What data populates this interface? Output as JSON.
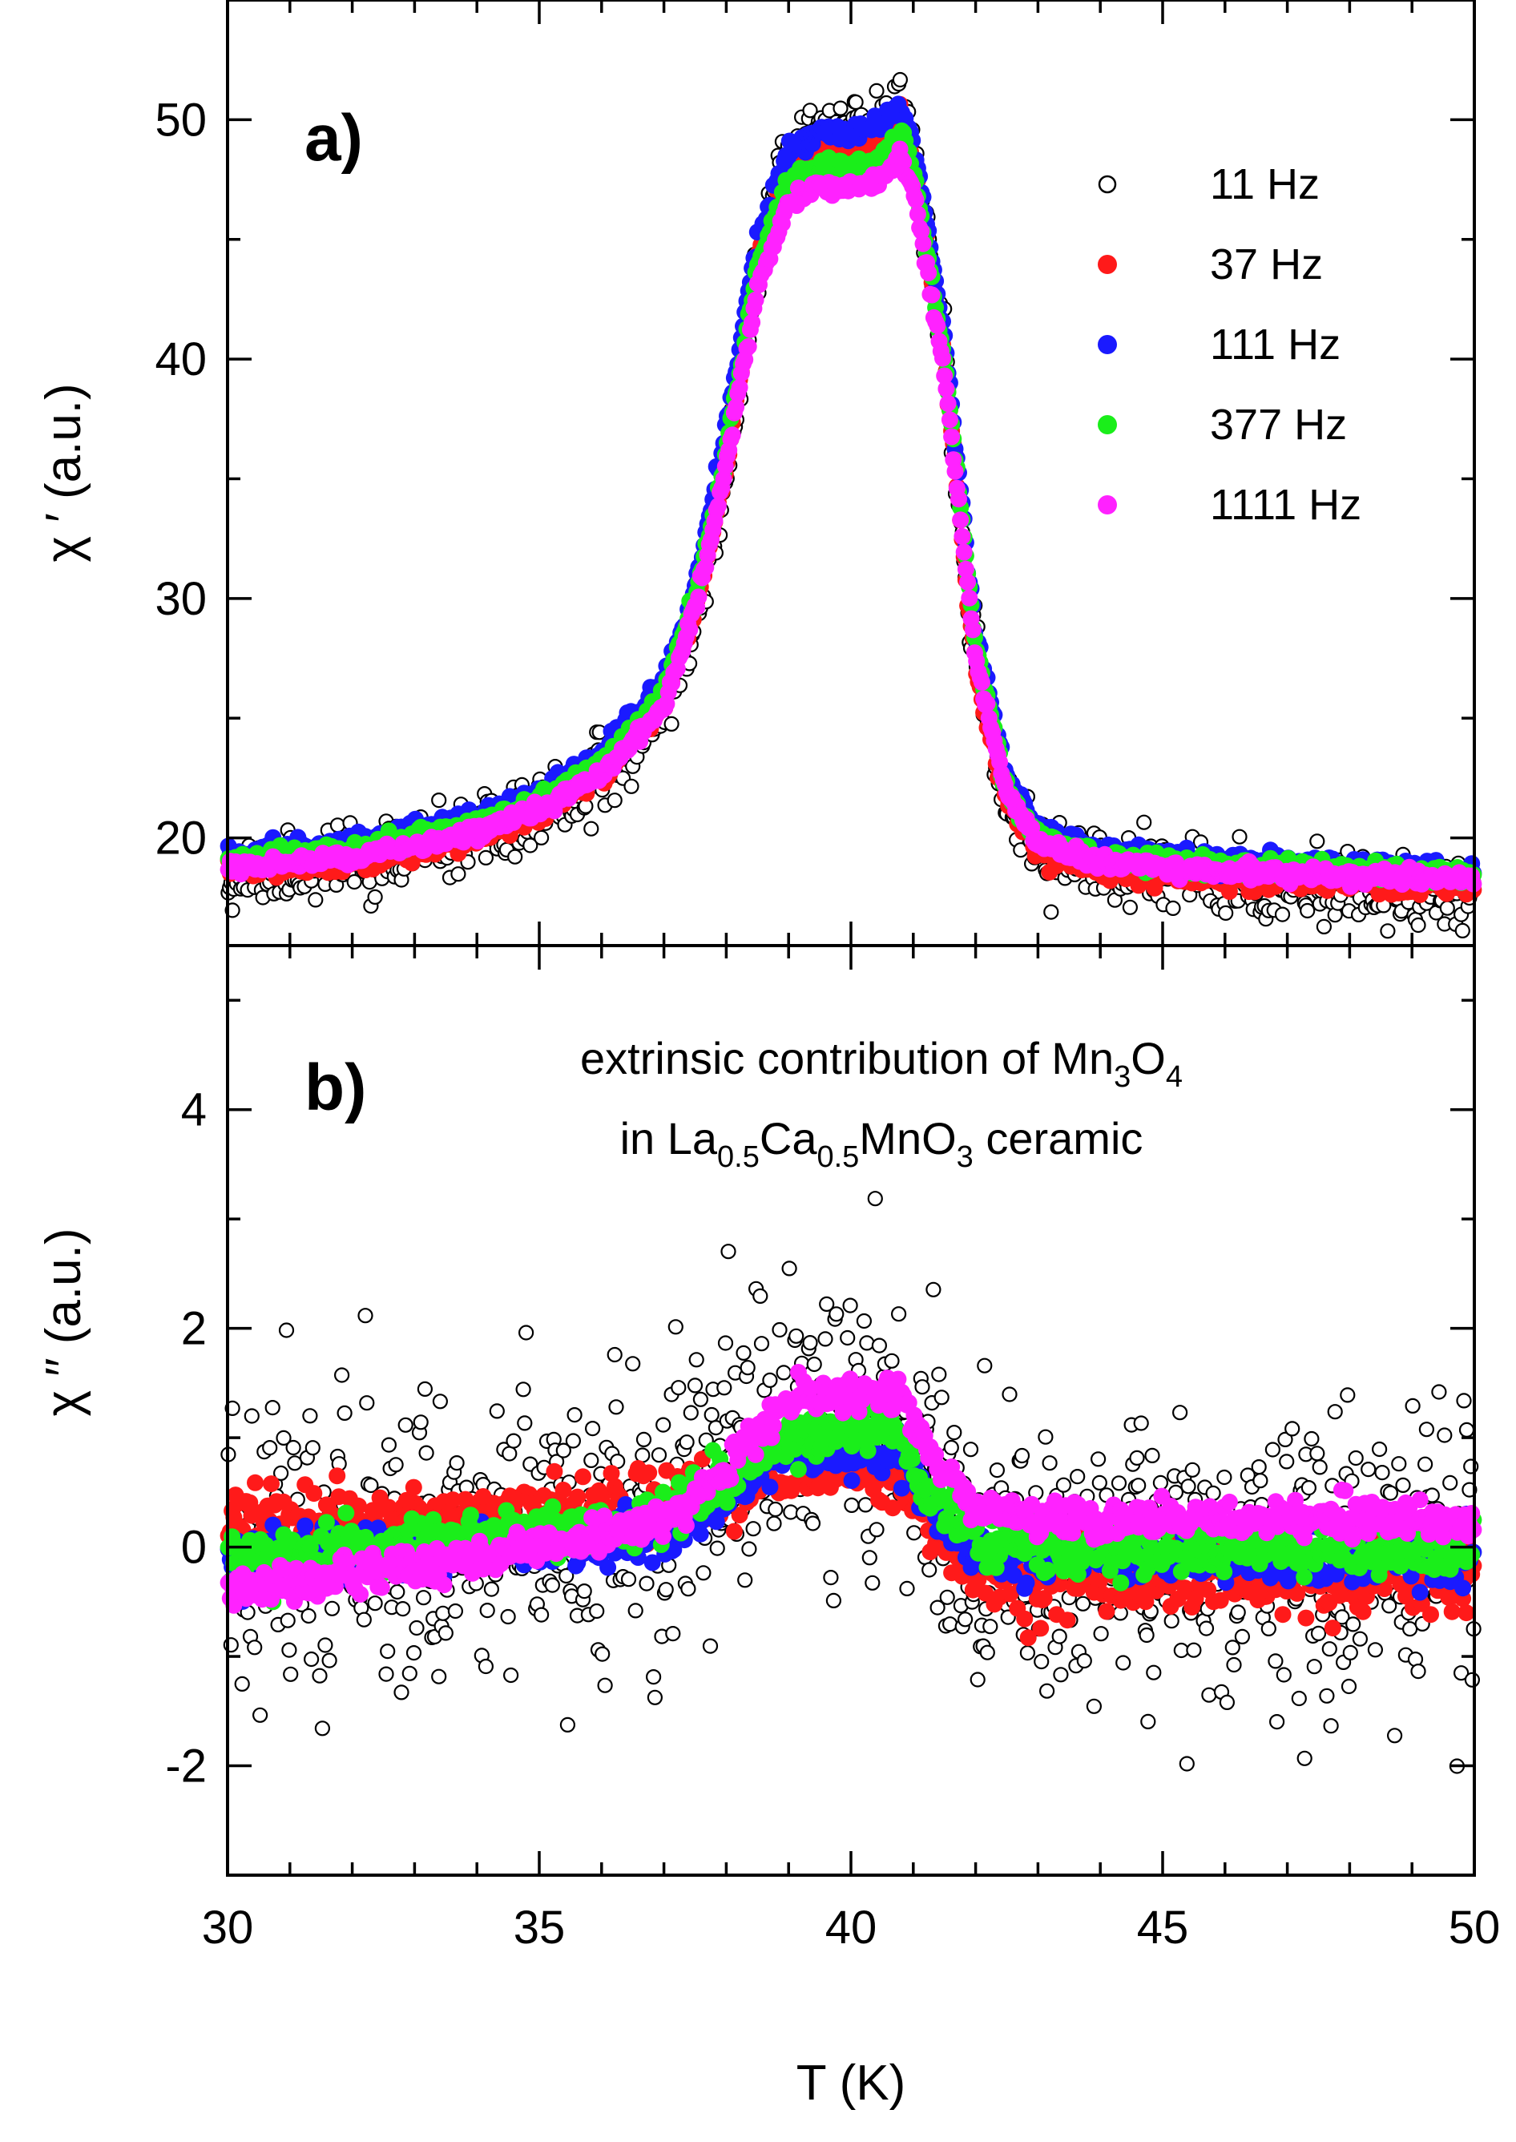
{
  "chart_data": [
    {
      "type": "scatter",
      "panel": "a)",
      "ylabel": "χ ′ (a.u.)",
      "xlim": [
        30,
        50
      ],
      "ylim": [
        15.5,
        55
      ],
      "yticks": [
        20,
        30,
        40,
        50
      ],
      "series": [
        {
          "name": "11 Hz",
          "color": "#ffffff",
          "stroke": "#000000",
          "style": "open",
          "noise": 0.7,
          "x": [
            30,
            32,
            34,
            35,
            36,
            37,
            37.5,
            38,
            38.5,
            39,
            39.5,
            40,
            40.5,
            40.8,
            41,
            41.5,
            42,
            42.5,
            43,
            44,
            46,
            48,
            50
          ],
          "y": [
            18.5,
            19.0,
            20.0,
            21.0,
            22.5,
            25.5,
            29,
            35,
            44,
            48.5,
            49.5,
            49.5,
            50,
            51,
            49,
            40,
            27,
            21.5,
            19.5,
            18.7,
            18.3,
            18.0,
            17.8
          ]
        },
        {
          "name": "37 Hz",
          "color": "#ff1a1a",
          "style": "filled",
          "noise": 0.25,
          "x": [
            30,
            32,
            34,
            35,
            36,
            37,
            37.5,
            38,
            38.5,
            39,
            39.5,
            40,
            40.5,
            40.8,
            41,
            41.5,
            42,
            42.5,
            43,
            44,
            46,
            48,
            50
          ],
          "y": [
            18.7,
            19.0,
            20.0,
            21.0,
            22.7,
            25.8,
            29.5,
            35.5,
            44,
            48,
            48.8,
            48.8,
            49.2,
            50.2,
            48.5,
            40,
            27,
            21.5,
            19.5,
            18.7,
            18.4,
            18.2,
            18.0
          ]
        },
        {
          "name": "111 Hz",
          "color": "#1a1aff",
          "style": "filled",
          "noise": 0.2,
          "x": [
            30,
            32,
            34,
            35,
            36,
            37,
            37.5,
            38,
            38.5,
            39,
            39.5,
            40,
            40.5,
            40.8,
            41,
            41.5,
            42,
            42.5,
            43,
            44,
            46,
            48,
            50
          ],
          "y": [
            19.2,
            19.8,
            20.8,
            21.8,
            23.5,
            26.5,
            30.5,
            37,
            45,
            48.8,
            49.5,
            49.5,
            49.8,
            50.5,
            49,
            41,
            28.5,
            22.5,
            20.3,
            19.5,
            19.0,
            18.8,
            18.6
          ]
        },
        {
          "name": "377 Hz",
          "color": "#1aee1a",
          "style": "filled",
          "noise": 0.2,
          "x": [
            30,
            32,
            34,
            35,
            36,
            37,
            37.5,
            38,
            38.5,
            39,
            39.5,
            40,
            40.5,
            40.8,
            41,
            41.5,
            42,
            42.5,
            43,
            44,
            46,
            48,
            50
          ],
          "y": [
            19.0,
            19.5,
            20.5,
            21.5,
            23.0,
            26.0,
            30,
            36,
            44,
            47.5,
            48,
            48,
            48.5,
            49.5,
            48,
            40,
            28,
            22,
            20,
            19.2,
            18.8,
            18.6,
            18.4
          ]
        },
        {
          "name": "1111 Hz",
          "color": "#ff22ff",
          "style": "filled",
          "noise": 0.15,
          "x": [
            30,
            32,
            34,
            35,
            36,
            37,
            37.5,
            38,
            38.5,
            39,
            39.5,
            40,
            40.5,
            40.8,
            41,
            41.5,
            42,
            42.5,
            43,
            44,
            46,
            48,
            50
          ],
          "y": [
            18.8,
            19.2,
            20.2,
            21.2,
            22.6,
            25.5,
            29.5,
            35.5,
            43,
            46.5,
            47.2,
            47.2,
            47.5,
            48.5,
            47,
            39.5,
            27.5,
            21.8,
            19.8,
            19.0,
            18.6,
            18.4,
            18.3
          ]
        }
      ],
      "legend": [
        "11 Hz",
        "37 Hz",
        "111 Hz",
        "377 Hz",
        "1111 Hz"
      ],
      "legend_position": "top-right"
    },
    {
      "type": "scatter",
      "panel": "b)",
      "ylabel": "χ ′′ (a.u.)",
      "xlabel": "T (K)",
      "xlim": [
        30,
        50
      ],
      "ylim": [
        -3,
        5.5
      ],
      "yticks": [
        -2,
        0,
        2,
        4
      ],
      "xticks": [
        30,
        35,
        40,
        45,
        50
      ],
      "annotation_line1": {
        "text": "extrinsic contribution of Mn",
        "sub1": "3",
        "mid": "O",
        "sub2": "4"
      },
      "annotation_line2": {
        "pre": "in La",
        "sub1": "0.5",
        "mid": "Ca",
        "sub2": "0.5",
        "post1": "MnO",
        "sub3": "3",
        "post2": " ceramic"
      },
      "series": [
        {
          "name": "11 Hz",
          "color": "#ffffff",
          "stroke": "#000000",
          "style": "open",
          "noise": 0.65,
          "x": [
            30,
            34,
            36,
            37,
            38,
            39,
            40,
            40.8,
            41.3,
            42,
            43,
            46,
            50
          ],
          "y": [
            0.1,
            0.1,
            0.2,
            0.4,
            0.8,
            1.1,
            1.1,
            1.3,
            0.8,
            -0.2,
            -0.1,
            -0.1,
            -0.1
          ]
        },
        {
          "name": "37 Hz",
          "color": "#ff1a1a",
          "style": "filled",
          "noise": 0.17,
          "x": [
            30,
            34,
            36,
            37,
            38,
            38.6,
            40,
            40.8,
            41.3,
            42,
            43,
            46,
            50
          ],
          "y": [
            0.2,
            0.25,
            0.3,
            0.35,
            0.5,
            0.7,
            0.7,
            0.7,
            0.2,
            -0.2,
            -0.3,
            -0.3,
            -0.3
          ]
        },
        {
          "name": "111 Hz",
          "color": "#1a1aff",
          "style": "filled",
          "noise": 0.12,
          "x": [
            30,
            34,
            36,
            37,
            38,
            38.8,
            40,
            40.8,
            41.3,
            42,
            43,
            46,
            50
          ],
          "y": [
            -0.1,
            0.0,
            0.05,
            0.1,
            0.45,
            0.85,
            0.85,
            0.9,
            0.3,
            -0.05,
            -0.1,
            -0.1,
            -0.1
          ]
        },
        {
          "name": "377 Hz",
          "color": "#1aee1a",
          "style": "filled",
          "noise": 0.12,
          "x": [
            30,
            34,
            36,
            37,
            38,
            38.8,
            40,
            40.8,
            41.3,
            42,
            43,
            46,
            50
          ],
          "y": [
            -0.1,
            0.1,
            0.2,
            0.3,
            0.55,
            1.0,
            1.05,
            1.05,
            0.4,
            0.1,
            0.0,
            0.0,
            0.0
          ]
        },
        {
          "name": "1111 Hz",
          "color": "#ff22ff",
          "style": "filled",
          "noise": 0.08,
          "x": [
            30,
            34,
            36,
            37,
            38,
            39,
            40,
            40.8,
            41.3,
            42,
            43,
            46,
            50
          ],
          "y": [
            -0.4,
            -0.1,
            0.1,
            0.25,
            0.7,
            1.35,
            1.4,
            1.4,
            0.8,
            0.35,
            0.25,
            0.25,
            0.25
          ]
        }
      ]
    }
  ]
}
